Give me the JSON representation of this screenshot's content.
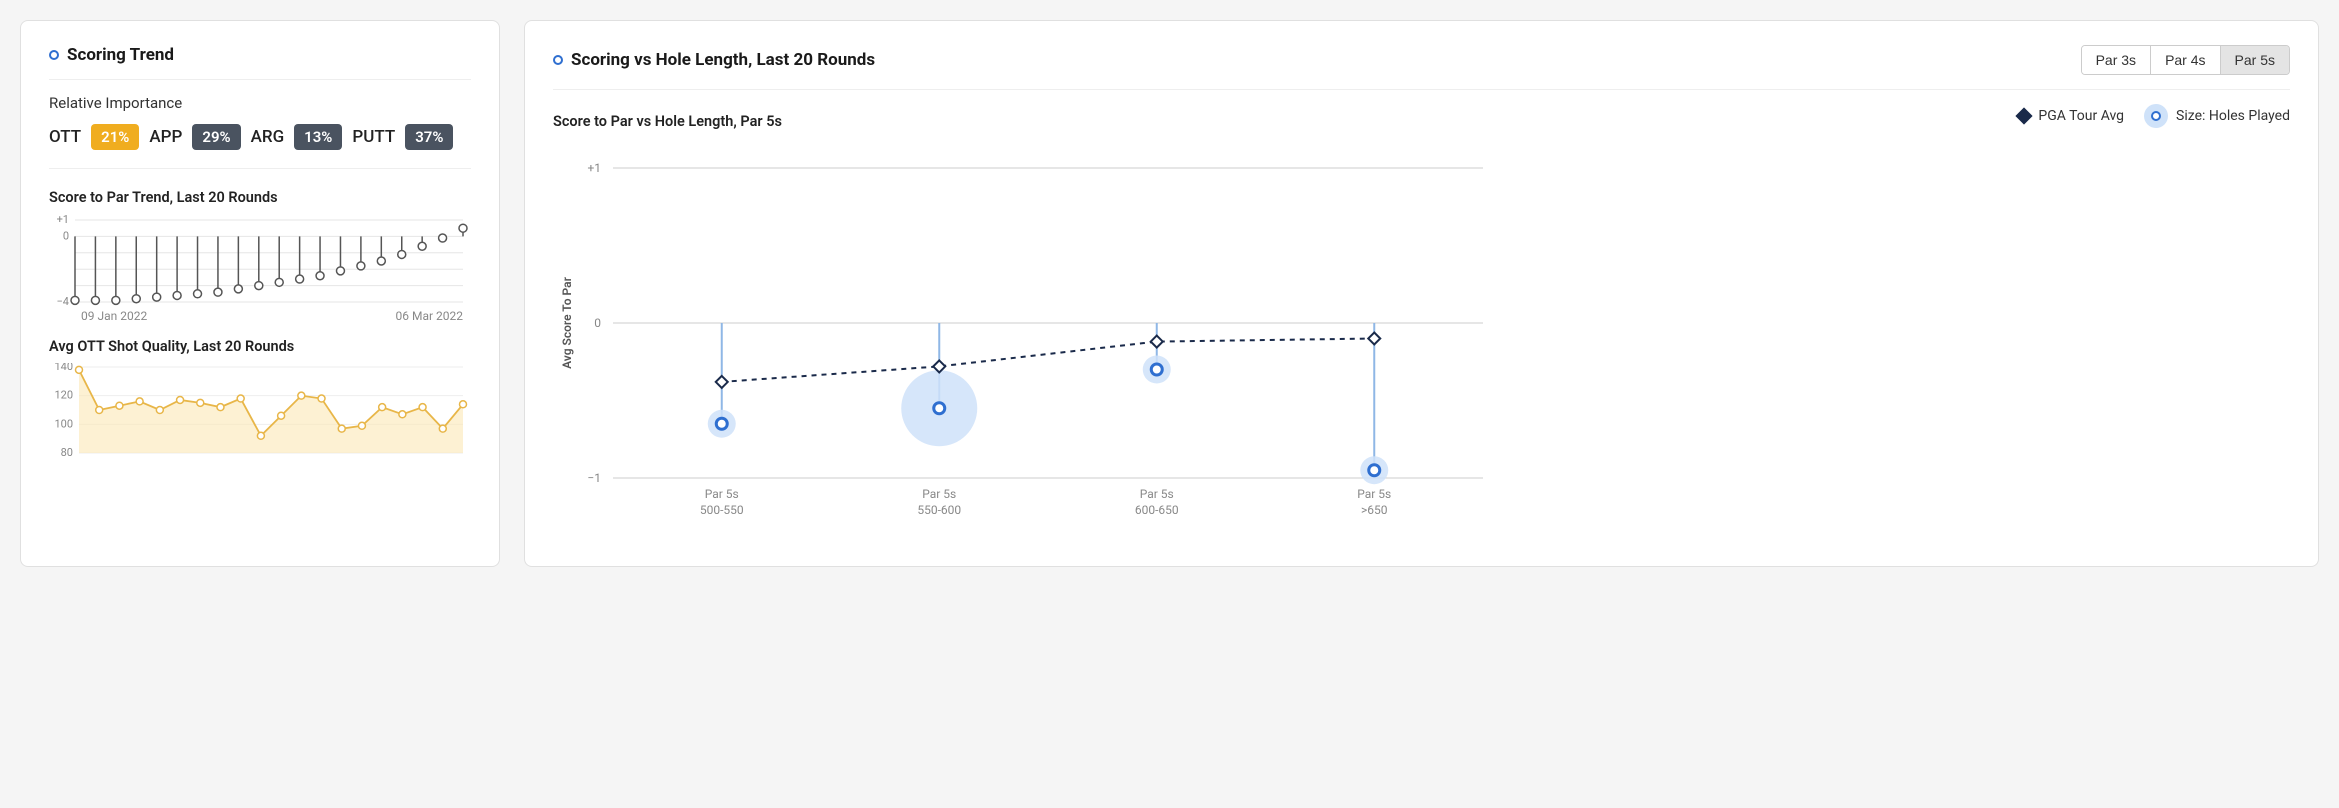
{
  "left_card": {
    "title": "Scoring Trend",
    "importance": {
      "label": "Relative Importance",
      "items": [
        {
          "label": "OTT",
          "value": "21%",
          "bg": "#f0ad1f",
          "highlight": true
        },
        {
          "label": "APP",
          "value": "29%",
          "bg": "#4a5360",
          "highlight": false
        },
        {
          "label": "ARG",
          "value": "13%",
          "bg": "#4a5360",
          "highlight": false
        },
        {
          "label": "PUTT",
          "value": "37%",
          "bg": "#4a5360",
          "highlight": false
        }
      ]
    },
    "trend_chart": {
      "title": "Score to Par Trend, Last 20 Rounds",
      "ylim": [
        -4,
        1
      ],
      "yticks": [
        1,
        0,
        -4
      ],
      "ytick_labels": [
        "+1",
        "0",
        "−4"
      ],
      "n": 20,
      "values": [
        -3.9,
        -3.9,
        -3.9,
        -3.8,
        -3.7,
        -3.6,
        -3.5,
        -3.4,
        -3.2,
        -3.0,
        -2.8,
        -2.6,
        -2.4,
        -2.1,
        -1.8,
        -1.5,
        -1.1,
        -0.6,
        -0.1,
        0.5
      ],
      "x_start_label": "09 Jan 2022",
      "x_end_label": "06 Mar 2022",
      "stroke": "#555555",
      "marker_fill": "#ffffff",
      "marker_stroke": "#555555",
      "grid_color": "#e6e6e6"
    },
    "ott_chart": {
      "title": "Avg OTT Shot Quality, Last 20 Rounds",
      "ylim": [
        80,
        140
      ],
      "yticks": [
        140,
        120,
        100,
        80
      ],
      "n": 20,
      "values": [
        138,
        110,
        113,
        116,
        110,
        117,
        115,
        112,
        118,
        92,
        106,
        120,
        118,
        97,
        99,
        112,
        107,
        112,
        97,
        114
      ],
      "area_fill": "#fbe7b5",
      "stroke": "#e8b648",
      "marker_fill": "#ffffff",
      "marker_stroke": "#e8b648",
      "grid_color": "#eeeeee"
    }
  },
  "right_card": {
    "title": "Scoring vs Hole Length, Last 20 Rounds",
    "buttons": [
      "Par 3s",
      "Par 4s",
      "Par 5s"
    ],
    "active_button": 2,
    "sub_title": "Score to Par vs Hole Length, Par 5s",
    "legend": {
      "pga": "PGA Tour Avg",
      "size": "Size: Holes Played"
    },
    "chart": {
      "y_label": "Avg Score To Par",
      "ylim": [
        -1,
        1
      ],
      "yticks": [
        1,
        0,
        -1
      ],
      "ytick_labels": [
        "+1",
        "0",
        "−1"
      ],
      "categories": [
        {
          "label1": "Par 5s",
          "label2": "500-550",
          "player": -0.65,
          "pga": -0.38,
          "bubble_r": 14
        },
        {
          "label1": "Par 5s",
          "label2": "550-600",
          "player": -0.55,
          "pga": -0.28,
          "bubble_r": 38
        },
        {
          "label1": "Par 5s",
          "label2": "600-650",
          "player": -0.3,
          "pga": -0.12,
          "bubble_r": 14
        },
        {
          "label1": "Par 5s",
          "label2": ">650",
          "player": -0.95,
          "pga": -0.1,
          "bubble_r": 14
        }
      ],
      "stem_color": "#8fb7e6",
      "bubble_fill": "#cfe2f9",
      "bubble_dot_stroke": "#2f6fd0",
      "pga_line_color": "#1a2a4a",
      "grid_color": "#cccccc",
      "background": "#ffffff"
    }
  }
}
